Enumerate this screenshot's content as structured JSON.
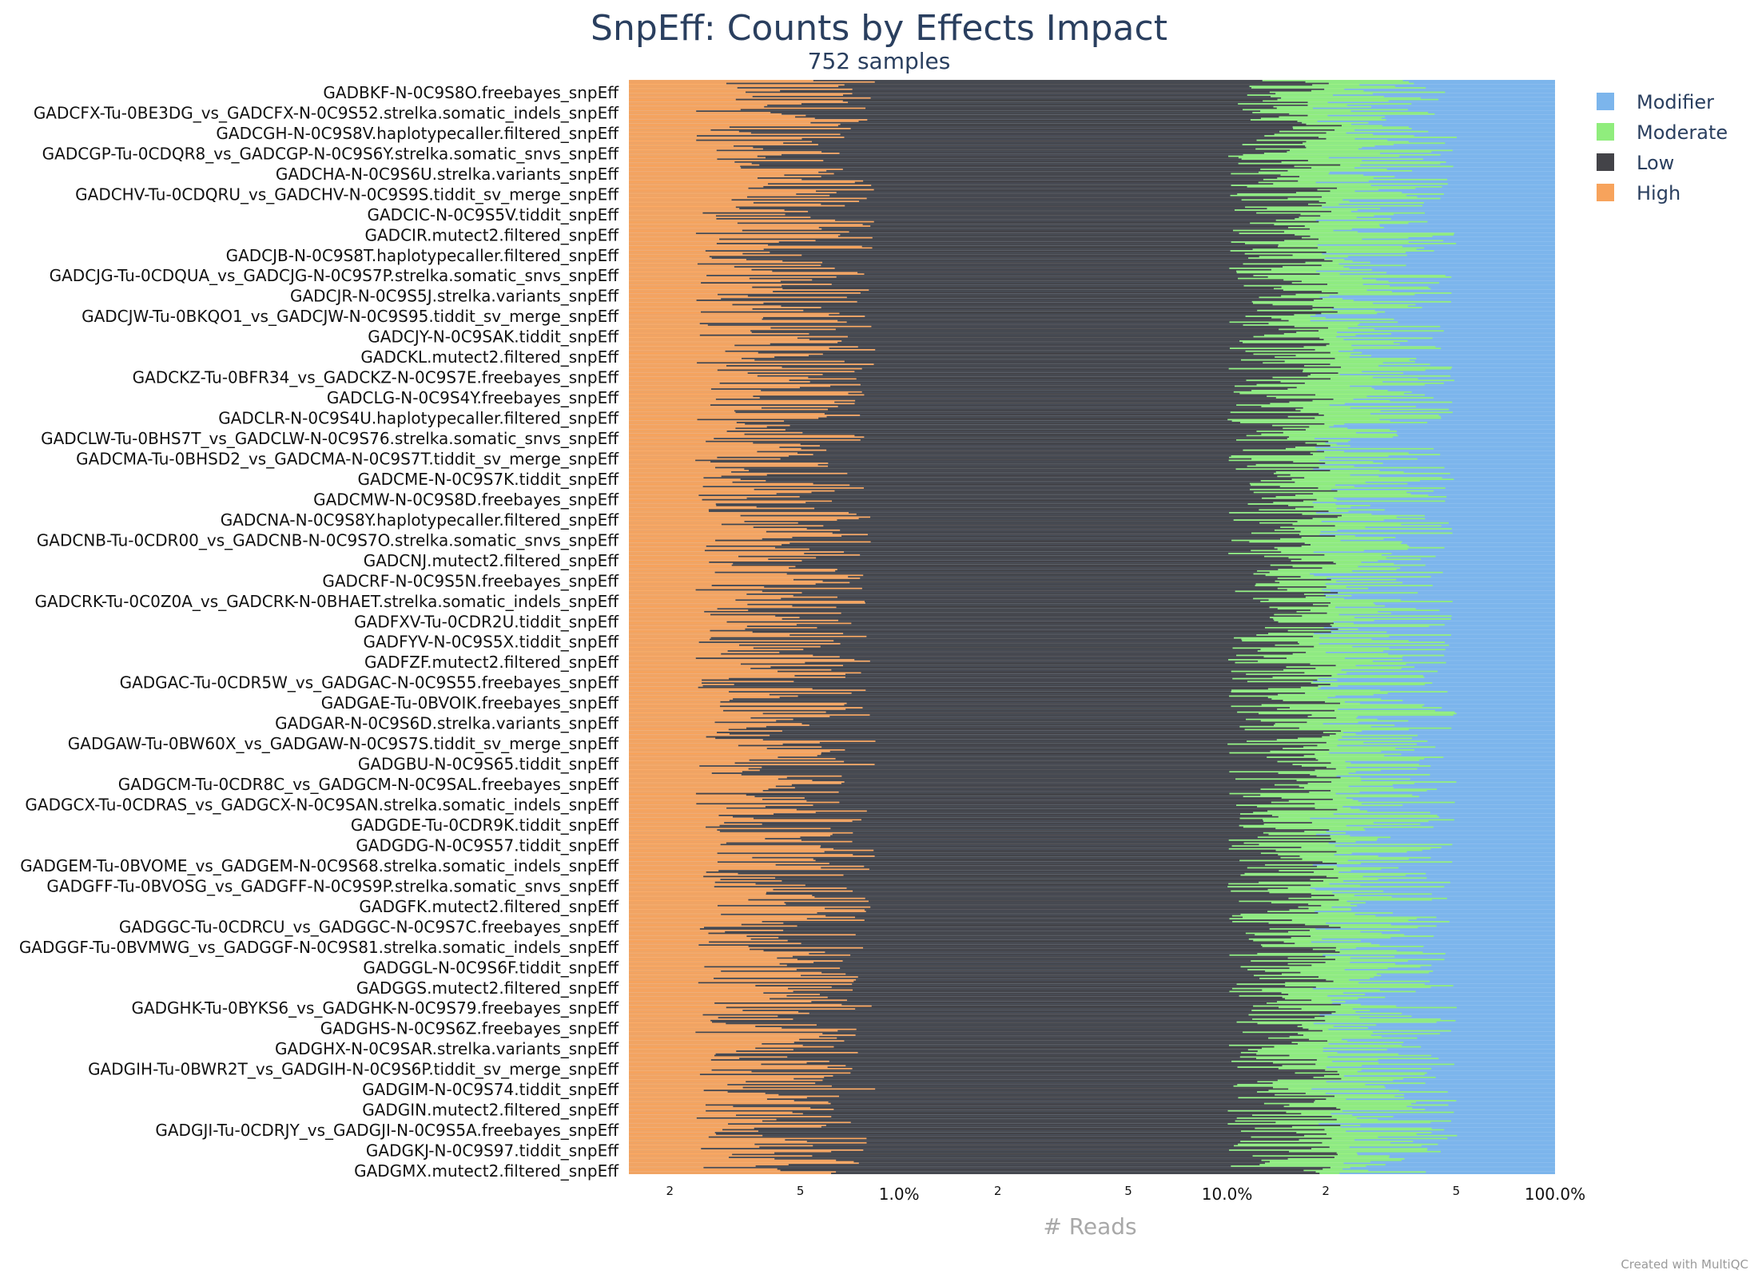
{
  "chart_data": {
    "type": "bar",
    "orientation": "horizontal",
    "stacked": true,
    "x_scale": "log",
    "title": "SnpEff: Counts by Effects Impact",
    "subtitle": "752 samples",
    "xlabel": "# Reads",
    "xlim_percent": [
      0.15,
      100
    ],
    "xticks": [
      "1.0%",
      "10.0%",
      "100.0%"
    ],
    "xminor_ticks": [
      "2",
      "5",
      "2",
      "5",
      "2",
      "5"
    ],
    "legend_position": "top-right",
    "series": [
      {
        "name": "Modifier",
        "color": "#7cb5ec"
      },
      {
        "name": "Moderate",
        "color": "#90ed7d"
      },
      {
        "name": "Low",
        "color": "#434348"
      },
      {
        "name": "High",
        "color": "#f7a35c"
      }
    ],
    "n_bars": 752,
    "category_labels": [
      "GADBKF-N-0C9S8O.freebayes_snpEff",
      "GADCFX-Tu-0BE3DG_vs_GADCFX-N-0C9S52.strelka.somatic_indels_snpEff",
      "GADCGH-N-0C9S8V.haplotypecaller.filtered_snpEff",
      "GADCGP-Tu-0CDQR8_vs_GADCGP-N-0C9S6Y.strelka.somatic_snvs_snpEff",
      "GADCHA-N-0C9S6U.strelka.variants_snpEff",
      "GADCHV-Tu-0CDQRU_vs_GADCHV-N-0C9S9S.tiddit_sv_merge_snpEff",
      "GADCIC-N-0C9S5V.tiddit_snpEff",
      "GADCIR.mutect2.filtered_snpEff",
      "GADCJB-N-0C9S8T.haplotypecaller.filtered_snpEff",
      "GADCJG-Tu-0CDQUA_vs_GADCJG-N-0C9S7P.strelka.somatic_snvs_snpEff",
      "GADCJR-N-0C9S5J.strelka.variants_snpEff",
      "GADCJW-Tu-0BKQO1_vs_GADCJW-N-0C9S95.tiddit_sv_merge_snpEff",
      "GADCJY-N-0C9SAK.tiddit_snpEff",
      "GADCKL.mutect2.filtered_snpEff",
      "GADCKZ-Tu-0BFR34_vs_GADCKZ-N-0C9S7E.freebayes_snpEff",
      "GADCLG-N-0C9S4Y.freebayes_snpEff",
      "GADCLR-N-0C9S4U.haplotypecaller.filtered_snpEff",
      "GADCLW-Tu-0BHS7T_vs_GADCLW-N-0C9S76.strelka.somatic_snvs_snpEff",
      "GADCMA-Tu-0BHSD2_vs_GADCMA-N-0C9S7T.tiddit_sv_merge_snpEff",
      "GADCME-N-0C9S7K.tiddit_snpEff",
      "GADCMW-N-0C9S8D.freebayes_snpEff",
      "GADCNA-N-0C9S8Y.haplotypecaller.filtered_snpEff",
      "GADCNB-Tu-0CDR00_vs_GADCNB-N-0C9S7O.strelka.somatic_snvs_snpEff",
      "GADCNJ.mutect2.filtered_snpEff",
      "GADCRF-N-0C9S5N.freebayes_snpEff",
      "GADCRK-Tu-0C0Z0A_vs_GADCRK-N-0BHAET.strelka.somatic_indels_snpEff",
      "GADFXV-Tu-0CDR2U.tiddit_snpEff",
      "GADFYV-N-0C9S5X.tiddit_snpEff",
      "GADFZF.mutect2.filtered_snpEff",
      "GADGAC-Tu-0CDR5W_vs_GADGAC-N-0C9S55.freebayes_snpEff",
      "GADGAE-Tu-0BVOIK.freebayes_snpEff",
      "GADGAR-N-0C9S6D.strelka.variants_snpEff",
      "GADGAW-Tu-0BW60X_vs_GADGAW-N-0C9S7S.tiddit_sv_merge_snpEff",
      "GADGBU-N-0C9S65.tiddit_snpEff",
      "GADGCM-Tu-0CDR8C_vs_GADGCM-N-0C9SAL.freebayes_snpEff",
      "GADGCX-Tu-0CDRAS_vs_GADGCX-N-0C9SAN.strelka.somatic_indels_snpEff",
      "GADGDE-Tu-0CDR9K.tiddit_snpEff",
      "GADGDG-N-0C9S57.tiddit_snpEff",
      "GADGEM-Tu-0BVOME_vs_GADGEM-N-0C9S68.strelka.somatic_indels_snpEff",
      "GADGFF-Tu-0BVOSG_vs_GADGFF-N-0C9S9P.strelka.somatic_snvs_snpEff",
      "GADGFK.mutect2.filtered_snpEff",
      "GADGGC-Tu-0CDRCU_vs_GADGGC-N-0C9S7C.freebayes_snpEff",
      "GADGGF-Tu-0BVMWG_vs_GADGGF-N-0C9S81.strelka.somatic_indels_snpEff",
      "GADGGL-N-0C9S6F.tiddit_snpEff",
      "GADGGS.mutect2.filtered_snpEff",
      "GADGHK-Tu-0BYKS6_vs_GADGHK-N-0C9S79.freebayes_snpEff",
      "GADGHS-N-0C9S6Z.freebayes_snpEff",
      "GADGHX-N-0C9SAR.strelka.variants_snpEff",
      "GADGIH-Tu-0BWR2T_vs_GADGIH-N-0C9S6P.tiddit_sv_merge_snpEff",
      "GADGIM-N-0C9S74.tiddit_snpEff",
      "GADGIN.mutect2.filtered_snpEff",
      "GADGJI-Tu-0CDRJY_vs_GADGJI-N-0C9S5A.freebayes_snpEff",
      "GADGKJ-N-0C9S97.tiddit_snpEff",
      "GADGMX.mutect2.filtered_snpEff"
    ],
    "typical_boundaries_percent": {
      "high_end": 0.45,
      "low_end": 15,
      "moderate_end": 27
    }
  },
  "footer": {
    "credit": "Created with MultiQC"
  }
}
